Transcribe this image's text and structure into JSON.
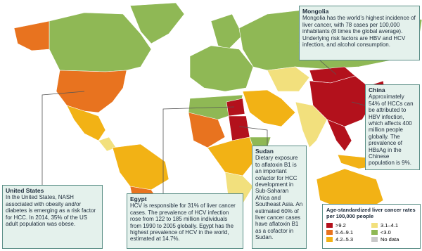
{
  "callouts": [
    {
      "title": "Mongolia",
      "text": "Mongolia has the world’s highest incidence of liver cancer, with 78 cases per 100,000 inhabitants (8 times the global average). Underlying risk factors are HBV and HCV infection, and alcohol consumption."
    },
    {
      "title": "China",
      "text": "Approximately 54% of HCCs can be attributed to HBV infection, which affects 400 million people globally. The prevalence of HBsAg in the Chinese population is 9%."
    },
    {
      "title": "United States",
      "text": "In the United States, NASH associated with obesity and/or diabetes is emerging as a risk factor for HCC. In 2014, 35% of the US adult population was obese."
    },
    {
      "title": "Egypt",
      "text": "HCV is responsible for 31% of liver cancer cases. The prevalence of HCV infection rose from 122 to 185 million individuals from 1990 to 2005 globally. Egypt has the highest prevalence of HCV in the world, estimated at 14.7%."
    },
    {
      "title": "Sudan",
      "text": "Dietary exposure to aflatoxin B1 is an important cofactor for HCC development in Sub-Saharan Africa and Southeast Asia. An estimated 60% of liver cancer cases have aflatoxin B1 as a cofactor in Sudan."
    }
  ],
  "legend": {
    "title": "Age-standardized liver cancer rates per 100,000 people",
    "items": [
      {
        "label": ">9.2",
        "color": "#b3111c"
      },
      {
        "label": "5.4–9.1",
        "color": "#e8731f"
      },
      {
        "label": "4.2–5.3",
        "color": "#f2b215"
      },
      {
        "label": "3.1–4.1",
        "color": "#f2e07d"
      },
      {
        "label": "<3.0",
        "color": "#8fb855"
      },
      {
        "label": "No data",
        "color": "#c9c9c9"
      }
    ]
  }
}
